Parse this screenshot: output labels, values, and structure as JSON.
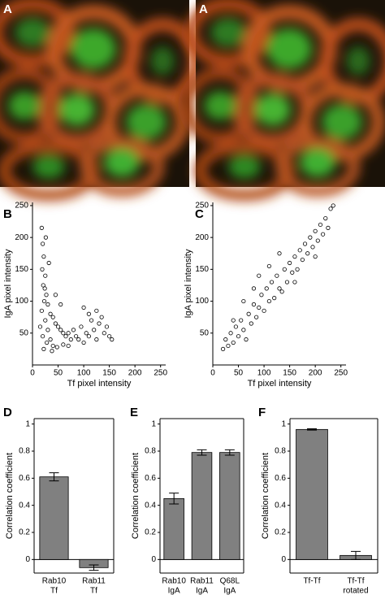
{
  "chart_data": [
    {
      "type": "image",
      "panel_label": "A"
    },
    {
      "type": "image",
      "panel_label": "A"
    },
    {
      "type": "scatter",
      "panel_label": "B",
      "xlabel": "Tf pixel intensity",
      "ylabel": "IgA pixel intensity",
      "xlim": [
        0,
        260
      ],
      "ylim": [
        0,
        255
      ],
      "xticks": [
        0,
        50,
        100,
        150,
        200,
        250
      ],
      "yticks": [
        50,
        100,
        150,
        200,
        250
      ],
      "color": "#000000",
      "x": [
        18,
        20,
        22,
        19,
        25,
        21,
        27,
        23,
        30,
        18,
        35,
        40,
        25,
        45,
        50,
        30,
        55,
        60,
        20,
        65,
        70,
        35,
        75,
        80,
        40,
        85,
        90,
        95,
        100,
        105,
        110,
        115,
        120,
        125,
        130,
        135,
        140,
        145,
        150,
        155,
        28,
        22,
        48,
        60,
        38,
        70,
        110,
        125,
        100,
        32,
        26,
        24,
        55,
        45,
        15
      ],
      "y": [
        215,
        190,
        170,
        150,
        140,
        125,
        110,
        100,
        95,
        85,
        80,
        75,
        70,
        65,
        60,
        55,
        55,
        50,
        45,
        45,
        50,
        40,
        40,
        55,
        30,
        45,
        40,
        60,
        35,
        50,
        45,
        70,
        55,
        40,
        65,
        75,
        50,
        60,
        45,
        40,
        35,
        25,
        28,
        32,
        22,
        30,
        80,
        85,
        90,
        160,
        200,
        120,
        95,
        110,
        60
      ]
    },
    {
      "type": "scatter",
      "panel_label": "C",
      "xlabel": "Tf pixel intensity",
      "ylabel": "IgA pixel intensity",
      "xlim": [
        0,
        260
      ],
      "ylim": [
        0,
        255
      ],
      "xticks": [
        0,
        50,
        100,
        150,
        200,
        250
      ],
      "yticks": [
        50,
        100,
        150,
        200,
        250
      ],
      "color": "#000000",
      "x": [
        20,
        25,
        30,
        35,
        40,
        45,
        50,
        55,
        60,
        65,
        70,
        75,
        80,
        85,
        90,
        95,
        100,
        105,
        110,
        115,
        120,
        125,
        130,
        135,
        140,
        145,
        150,
        155,
        160,
        165,
        170,
        175,
        180,
        185,
        190,
        195,
        200,
        205,
        210,
        215,
        220,
        225,
        230,
        235,
        110,
        90,
        60,
        160,
        200,
        130,
        80,
        40
      ],
      "y": [
        25,
        40,
        30,
        50,
        35,
        60,
        45,
        70,
        55,
        40,
        80,
        65,
        95,
        75,
        90,
        110,
        85,
        120,
        100,
        130,
        105,
        140,
        120,
        115,
        150,
        130,
        160,
        145,
        170,
        150,
        180,
        165,
        190,
        175,
        200,
        185,
        210,
        195,
        220,
        205,
        230,
        215,
        245,
        250,
        155,
        140,
        100,
        130,
        170,
        175,
        120,
        70
      ]
    },
    {
      "type": "bar",
      "panel_label": "D",
      "ylabel": "Correlation coefficient",
      "ylim": [
        -0.1,
        1.04
      ],
      "yticks": [
        0,
        0.2,
        0.4,
        0.6,
        0.8,
        1
      ],
      "color": "#808080",
      "categories": [
        [
          "Rab10",
          "Tf"
        ],
        [
          "Rab11",
          "Tf"
        ]
      ],
      "values": [
        0.61,
        -0.06
      ],
      "errors": [
        0.03,
        0.02
      ]
    },
    {
      "type": "bar",
      "panel_label": "E",
      "ylabel": "Correlation coefficient",
      "ylim": [
        -0.1,
        1.04
      ],
      "yticks": [
        0,
        0.2,
        0.4,
        0.6,
        0.8,
        1
      ],
      "color": "#808080",
      "categories": [
        [
          "Rab10",
          "IgA"
        ],
        [
          "Rab11",
          "IgA"
        ],
        [
          "Q68L",
          "IgA"
        ]
      ],
      "values": [
        0.45,
        0.79,
        0.79
      ],
      "errors": [
        0.04,
        0.02,
        0.02
      ]
    },
    {
      "type": "bar",
      "panel_label": "F",
      "ylabel": "Correlation coefficient",
      "ylim": [
        -0.1,
        1.04
      ],
      "yticks": [
        0,
        0.2,
        0.4,
        0.6,
        0.8,
        1
      ],
      "color": "#808080",
      "categories": [
        [
          "Tf-Tf"
        ],
        [
          "Tf-Tf",
          "rotated"
        ]
      ],
      "values": [
        0.96,
        0.03
      ],
      "errors": [
        0.005,
        0.03
      ]
    }
  ]
}
